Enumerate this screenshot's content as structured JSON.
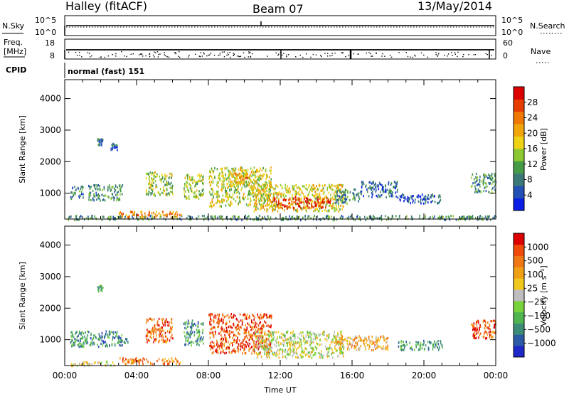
{
  "header": {
    "station": "Halley (fitACF)",
    "beam": "Beam 07",
    "date": "13/May/2014"
  },
  "strips": {
    "nsky_label": "N.Sky",
    "nsearch_label": "N.Search",
    "freq_label_top": "Freq.",
    "freq_label_unit": "[MHz]",
    "nave_label": "Nave",
    "cpid_label": "CPID",
    "nsky_ticks": [
      "10^5",
      "10^0"
    ],
    "nsearch_ticks": [
      "10^5",
      "10^0"
    ],
    "freq_ticks": [
      "18",
      "8"
    ],
    "nave_ticks": [
      "60",
      "0"
    ],
    "cpid_text": "normal (fast) 151"
  },
  "chart_data": [
    {
      "type": "heatmap",
      "name": "power",
      "ylabel": "Slant Range [km]",
      "xlabel": "",
      "ylim": [
        180,
        4600
      ],
      "xlim": [
        0,
        24
      ],
      "yticks": [
        "1000",
        "2000",
        "3000",
        "4000"
      ],
      "xticks": [],
      "colorbar": {
        "label": "Power [dB]",
        "ticks": [
          "4",
          "8",
          "12",
          "16",
          "20",
          "24",
          "28"
        ],
        "colors": [
          "#0a1ee6",
          "#2350b4",
          "#3c7878",
          "#469b46",
          "#8cc832",
          "#f0d214",
          "#f0a50a",
          "#f07800",
          "#e63c00",
          "#dc0000"
        ]
      },
      "regions": [
        {
          "t0": 0.1,
          "t1": 24.0,
          "r0": 180,
          "r1": 320,
          "level": 0.3
        },
        {
          "t0": 0.3,
          "t1": 1.0,
          "r0": 850,
          "r1": 1250,
          "level": 0.25
        },
        {
          "t0": 1.3,
          "t1": 3.2,
          "r0": 800,
          "r1": 1300,
          "level": 0.3
        },
        {
          "t0": 1.8,
          "t1": 2.1,
          "r0": 2550,
          "r1": 2750,
          "level": 0.2
        },
        {
          "t0": 2.5,
          "t1": 2.9,
          "r0": 2400,
          "r1": 2600,
          "level": 0.2
        },
        {
          "t0": 3.0,
          "t1": 6.5,
          "r0": 250,
          "r1": 450,
          "level": 0.7
        },
        {
          "t0": 4.5,
          "t1": 6.0,
          "r0": 950,
          "r1": 1700,
          "level": 0.45
        },
        {
          "t0": 6.6,
          "t1": 7.7,
          "r0": 850,
          "r1": 1650,
          "level": 0.45
        },
        {
          "t0": 8.0,
          "t1": 11.5,
          "r0": 600,
          "r1": 1850,
          "level": 0.5
        },
        {
          "t0": 9.3,
          "t1": 10.4,
          "r0": 1350,
          "r1": 1800,
          "level": 0.65
        },
        {
          "t0": 10.5,
          "t1": 15.5,
          "r0": 450,
          "r1": 1300,
          "level": 0.55
        },
        {
          "t0": 11.5,
          "t1": 14.8,
          "r0": 550,
          "r1": 900,
          "level": 0.85
        },
        {
          "t0": 15.0,
          "t1": 16.5,
          "r0": 700,
          "r1": 1150,
          "level": 0.3
        },
        {
          "t0": 16.5,
          "t1": 18.5,
          "r0": 900,
          "r1": 1400,
          "level": 0.2
        },
        {
          "t0": 18.5,
          "t1": 21.0,
          "r0": 700,
          "r1": 1000,
          "level": 0.15
        },
        {
          "t0": 22.6,
          "t1": 24.0,
          "r0": 1050,
          "r1": 1650,
          "level": 0.3
        }
      ]
    },
    {
      "type": "heatmap",
      "name": "velocity",
      "ylabel": "Slant Range [km]",
      "xlabel": "Time UT",
      "ylim": [
        180,
        4600
      ],
      "xlim": [
        0,
        24
      ],
      "yticks": [
        "1000",
        "2000",
        "3000",
        "4000"
      ],
      "xticks": [
        "00:00",
        "04:00",
        "08:00",
        "12:00",
        "16:00",
        "20:00",
        "00:00"
      ],
      "colorbar": {
        "label": "Velocity [m s⁻¹]",
        "ticks": [
          "1000",
          "500",
          "100",
          "25",
          "−25",
          "−100",
          "−500",
          "−1000"
        ],
        "colors": [
          "#1e28c8",
          "#2d5aa5",
          "#3c8c78",
          "#50b450",
          "#78d23c",
          "#bebebe",
          "#f0c81e",
          "#f0a014",
          "#f07814",
          "#f04b0a",
          "#dc0000"
        ]
      },
      "regions": [
        {
          "t0": 0.2,
          "t1": 2.8,
          "r0": 200,
          "r1": 330,
          "level": 0.55
        },
        {
          "t0": 0.3,
          "t1": 3.5,
          "r0": 800,
          "r1": 1300,
          "level": 0.25
        },
        {
          "t0": 1.8,
          "t1": 2.1,
          "r0": 2550,
          "r1": 2750,
          "level": 0.3
        },
        {
          "t0": 3.0,
          "t1": 6.5,
          "r0": 250,
          "r1": 450,
          "level": 0.75
        },
        {
          "t0": 4.5,
          "t1": 6.0,
          "r0": 950,
          "r1": 1700,
          "level": 0.8
        },
        {
          "t0": 6.6,
          "t1": 7.7,
          "r0": 850,
          "r1": 1650,
          "level": 0.25
        },
        {
          "t0": 8.0,
          "t1": 11.5,
          "r0": 600,
          "r1": 1850,
          "level": 0.85
        },
        {
          "t0": 10.5,
          "t1": 15.5,
          "r0": 450,
          "r1": 1300,
          "level": 0.5
        },
        {
          "t0": 15.0,
          "t1": 18.0,
          "r0": 700,
          "r1": 1150,
          "level": 0.65
        },
        {
          "t0": 18.5,
          "t1": 21.0,
          "r0": 700,
          "r1": 1000,
          "level": 0.3
        },
        {
          "t0": 22.6,
          "t1": 24.0,
          "r0": 1050,
          "r1": 1650,
          "level": 0.85
        }
      ]
    }
  ]
}
